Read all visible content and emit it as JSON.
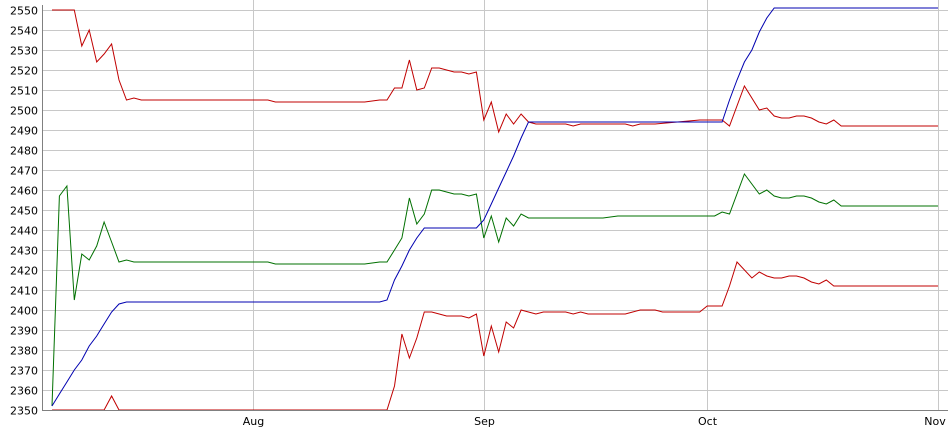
{
  "chart_data": {
    "type": "line",
    "title": "",
    "xlabel": "",
    "ylabel": "",
    "ylim": [
      2350,
      2550
    ],
    "y_ticks": [
      2350,
      2360,
      2370,
      2380,
      2390,
      2400,
      2410,
      2420,
      2430,
      2440,
      2450,
      2460,
      2470,
      2480,
      2490,
      2500,
      2510,
      2520,
      2530,
      2540,
      2550
    ],
    "x_ticks": [
      {
        "label": "Aug",
        "date": "2023-08-01"
      },
      {
        "label": "Sep",
        "date": "2023-09-01"
      },
      {
        "label": "Oct",
        "date": "2023-10-01"
      },
      {
        "label": "Nov",
        "date": "2023-11-01"
      }
    ],
    "x_range": [
      "2023-07-05",
      "2023-11-01"
    ],
    "grid": true,
    "series": [
      {
        "color": "#c00000",
        "values": [
          [
            "2023-07-05",
            2550
          ],
          [
            "2023-07-07",
            2550
          ],
          [
            "2023-07-08",
            2550
          ],
          [
            "2023-07-09",
            2532
          ],
          [
            "2023-07-10",
            2540
          ],
          [
            "2023-07-11",
            2524
          ],
          [
            "2023-07-12",
            2528
          ],
          [
            "2023-07-13",
            2533
          ],
          [
            "2023-07-14",
            2515
          ],
          [
            "2023-07-15",
            2505
          ],
          [
            "2023-07-16",
            2506
          ],
          [
            "2023-07-17",
            2505
          ],
          [
            "2023-07-24",
            2505
          ],
          [
            "2023-07-31",
            2505
          ],
          [
            "2023-08-03",
            2505
          ],
          [
            "2023-08-04",
            2504
          ],
          [
            "2023-08-10",
            2504
          ],
          [
            "2023-08-16",
            2504
          ],
          [
            "2023-08-18",
            2505
          ],
          [
            "2023-08-19",
            2505
          ],
          [
            "2023-08-20",
            2511
          ],
          [
            "2023-08-21",
            2511
          ],
          [
            "2023-08-22",
            2525
          ],
          [
            "2023-08-23",
            2510
          ],
          [
            "2023-08-24",
            2511
          ],
          [
            "2023-08-25",
            2521
          ],
          [
            "2023-08-26",
            2521
          ],
          [
            "2023-08-27",
            2520
          ],
          [
            "2023-08-28",
            2519
          ],
          [
            "2023-08-29",
            2519
          ],
          [
            "2023-08-30",
            2518
          ],
          [
            "2023-08-31",
            2519
          ],
          [
            "2023-09-01",
            2495
          ],
          [
            "2023-09-02",
            2504
          ],
          [
            "2023-09-03",
            2489
          ],
          [
            "2023-09-04",
            2498
          ],
          [
            "2023-09-05",
            2493
          ],
          [
            "2023-09-06",
            2498
          ],
          [
            "2023-09-07",
            2494
          ],
          [
            "2023-09-08",
            2493
          ],
          [
            "2023-09-10",
            2493
          ],
          [
            "2023-09-12",
            2493
          ],
          [
            "2023-09-13",
            2492
          ],
          [
            "2023-09-14",
            2493
          ],
          [
            "2023-09-20",
            2493
          ],
          [
            "2023-09-21",
            2492
          ],
          [
            "2023-09-22",
            2493
          ],
          [
            "2023-09-24",
            2493
          ],
          [
            "2023-09-30",
            2495
          ],
          [
            "2023-10-03",
            2495
          ],
          [
            "2023-10-04",
            2492
          ],
          [
            "2023-10-06",
            2512
          ],
          [
            "2023-10-08",
            2500
          ],
          [
            "2023-10-09",
            2501
          ],
          [
            "2023-10-10",
            2497
          ],
          [
            "2023-10-11",
            2496
          ],
          [
            "2023-10-12",
            2496
          ],
          [
            "2023-10-13",
            2497
          ],
          [
            "2023-10-14",
            2497
          ],
          [
            "2023-10-15",
            2496
          ],
          [
            "2023-10-16",
            2494
          ],
          [
            "2023-10-17",
            2493
          ],
          [
            "2023-10-18",
            2495
          ],
          [
            "2023-10-19",
            2492
          ],
          [
            "2023-11-01",
            2492
          ]
        ]
      },
      {
        "color": "#007000",
        "values": [
          [
            "2023-07-05",
            2352
          ],
          [
            "2023-07-06",
            2457
          ],
          [
            "2023-07-07",
            2462
          ],
          [
            "2023-07-08",
            2405
          ],
          [
            "2023-07-09",
            2428
          ],
          [
            "2023-07-10",
            2425
          ],
          [
            "2023-07-11",
            2432
          ],
          [
            "2023-07-12",
            2444
          ],
          [
            "2023-07-13",
            2434
          ],
          [
            "2023-07-14",
            2424
          ],
          [
            "2023-07-15",
            2425
          ],
          [
            "2023-07-16",
            2424
          ],
          [
            "2023-07-24",
            2424
          ],
          [
            "2023-07-31",
            2424
          ],
          [
            "2023-08-03",
            2424
          ],
          [
            "2023-08-04",
            2423
          ],
          [
            "2023-08-10",
            2423
          ],
          [
            "2023-08-16",
            2423
          ],
          [
            "2023-08-18",
            2424
          ],
          [
            "2023-08-19",
            2424
          ],
          [
            "2023-08-20",
            2430
          ],
          [
            "2023-08-21",
            2436
          ],
          [
            "2023-08-22",
            2456
          ],
          [
            "2023-08-23",
            2443
          ],
          [
            "2023-08-24",
            2448
          ],
          [
            "2023-08-25",
            2460
          ],
          [
            "2023-08-26",
            2460
          ],
          [
            "2023-08-27",
            2459
          ],
          [
            "2023-08-28",
            2458
          ],
          [
            "2023-08-29",
            2458
          ],
          [
            "2023-08-30",
            2457
          ],
          [
            "2023-08-31",
            2458
          ],
          [
            "2023-09-01",
            2436
          ],
          [
            "2023-09-02",
            2447
          ],
          [
            "2023-09-03",
            2434
          ],
          [
            "2023-09-04",
            2446
          ],
          [
            "2023-09-05",
            2442
          ],
          [
            "2023-09-06",
            2448
          ],
          [
            "2023-09-07",
            2446
          ],
          [
            "2023-09-08",
            2446
          ],
          [
            "2023-09-12",
            2446
          ],
          [
            "2023-09-17",
            2446
          ],
          [
            "2023-09-19",
            2447
          ],
          [
            "2023-09-24",
            2447
          ],
          [
            "2023-09-30",
            2447
          ],
          [
            "2023-10-02",
            2447
          ],
          [
            "2023-10-03",
            2449
          ],
          [
            "2023-10-04",
            2448
          ],
          [
            "2023-10-06",
            2468
          ],
          [
            "2023-10-08",
            2458
          ],
          [
            "2023-10-09",
            2460
          ],
          [
            "2023-10-10",
            2457
          ],
          [
            "2023-10-11",
            2456
          ],
          [
            "2023-10-12",
            2456
          ],
          [
            "2023-10-13",
            2457
          ],
          [
            "2023-10-14",
            2457
          ],
          [
            "2023-10-15",
            2456
          ],
          [
            "2023-10-16",
            2454
          ],
          [
            "2023-10-17",
            2453
          ],
          [
            "2023-10-18",
            2455
          ],
          [
            "2023-10-19",
            2452
          ],
          [
            "2023-11-01",
            2452
          ]
        ]
      },
      {
        "color": "#c00000",
        "values": [
          [
            "2023-07-05",
            2350
          ],
          [
            "2023-07-12",
            2350
          ],
          [
            "2023-07-13",
            2357
          ],
          [
            "2023-07-14",
            2350
          ],
          [
            "2023-07-17",
            2350
          ],
          [
            "2023-07-24",
            2350
          ],
          [
            "2023-07-31",
            2350
          ],
          [
            "2023-08-10",
            2350
          ],
          [
            "2023-08-18",
            2350
          ],
          [
            "2023-08-19",
            2350
          ],
          [
            "2023-08-20",
            2362
          ],
          [
            "2023-08-21",
            2388
          ],
          [
            "2023-08-22",
            2376
          ],
          [
            "2023-08-23",
            2386
          ],
          [
            "2023-08-24",
            2399
          ],
          [
            "2023-08-25",
            2399
          ],
          [
            "2023-08-26",
            2398
          ],
          [
            "2023-08-27",
            2397
          ],
          [
            "2023-08-28",
            2397
          ],
          [
            "2023-08-29",
            2397
          ],
          [
            "2023-08-30",
            2396
          ],
          [
            "2023-08-31",
            2398
          ],
          [
            "2023-09-01",
            2377
          ],
          [
            "2023-09-02",
            2392
          ],
          [
            "2023-09-03",
            2379
          ],
          [
            "2023-09-04",
            2394
          ],
          [
            "2023-09-05",
            2391
          ],
          [
            "2023-09-06",
            2400
          ],
          [
            "2023-09-07",
            2399
          ],
          [
            "2023-09-08",
            2398
          ],
          [
            "2023-09-09",
            2399
          ],
          [
            "2023-09-12",
            2399
          ],
          [
            "2023-09-13",
            2398
          ],
          [
            "2023-09-14",
            2399
          ],
          [
            "2023-09-15",
            2398
          ],
          [
            "2023-09-20",
            2398
          ],
          [
            "2023-09-21",
            2399
          ],
          [
            "2023-09-22",
            2400
          ],
          [
            "2023-09-24",
            2400
          ],
          [
            "2023-09-25",
            2399
          ],
          [
            "2023-09-30",
            2399
          ],
          [
            "2023-10-01",
            2402
          ],
          [
            "2023-10-03",
            2402
          ],
          [
            "2023-10-04",
            2412
          ],
          [
            "2023-10-05",
            2424
          ],
          [
            "2023-10-07",
            2416
          ],
          [
            "2023-10-08",
            2419
          ],
          [
            "2023-10-09",
            2417
          ],
          [
            "2023-10-10",
            2416
          ],
          [
            "2023-10-11",
            2416
          ],
          [
            "2023-10-12",
            2417
          ],
          [
            "2023-10-13",
            2417
          ],
          [
            "2023-10-14",
            2416
          ],
          [
            "2023-10-15",
            2414
          ],
          [
            "2023-10-16",
            2413
          ],
          [
            "2023-10-17",
            2415
          ],
          [
            "2023-10-18",
            2412
          ],
          [
            "2023-11-01",
            2412
          ]
        ]
      },
      {
        "color": "#0000b0",
        "values": [
          [
            "2023-07-05",
            2352
          ],
          [
            "2023-07-06",
            2358
          ],
          [
            "2023-07-07",
            2364
          ],
          [
            "2023-07-08",
            2370
          ],
          [
            "2023-07-09",
            2375
          ],
          [
            "2023-07-10",
            2382
          ],
          [
            "2023-07-11",
            2387
          ],
          [
            "2023-07-12",
            2393
          ],
          [
            "2023-07-13",
            2399
          ],
          [
            "2023-07-14",
            2403
          ],
          [
            "2023-07-15",
            2404
          ],
          [
            "2023-07-18",
            2404
          ],
          [
            "2023-07-24",
            2404
          ],
          [
            "2023-07-31",
            2404
          ],
          [
            "2023-08-10",
            2404
          ],
          [
            "2023-08-16",
            2404
          ],
          [
            "2023-08-18",
            2404
          ],
          [
            "2023-08-19",
            2405
          ],
          [
            "2023-08-20",
            2415
          ],
          [
            "2023-08-21",
            2422
          ],
          [
            "2023-08-22",
            2430
          ],
          [
            "2023-08-23",
            2436
          ],
          [
            "2023-08-24",
            2441
          ],
          [
            "2023-08-25",
            2441
          ],
          [
            "2023-08-28",
            2441
          ],
          [
            "2023-08-31",
            2441
          ],
          [
            "2023-09-01",
            2445
          ],
          [
            "2023-09-02",
            2453
          ],
          [
            "2023-09-03",
            2461
          ],
          [
            "2023-09-04",
            2469
          ],
          [
            "2023-09-05",
            2477
          ],
          [
            "2023-09-06",
            2486
          ],
          [
            "2023-09-07",
            2494
          ],
          [
            "2023-09-08",
            2494
          ],
          [
            "2023-09-12",
            2494
          ],
          [
            "2023-09-20",
            2494
          ],
          [
            "2023-09-30",
            2494
          ],
          [
            "2023-10-02",
            2494
          ],
          [
            "2023-10-03",
            2494
          ],
          [
            "2023-10-04",
            2505
          ],
          [
            "2023-10-05",
            2515
          ],
          [
            "2023-10-06",
            2524
          ],
          [
            "2023-10-07",
            2530
          ],
          [
            "2023-10-08",
            2539
          ],
          [
            "2023-10-09",
            2546
          ],
          [
            "2023-10-10",
            2551
          ],
          [
            "2023-10-15",
            2551
          ],
          [
            "2023-10-25",
            2551
          ],
          [
            "2023-11-01",
            2551
          ]
        ]
      }
    ]
  }
}
